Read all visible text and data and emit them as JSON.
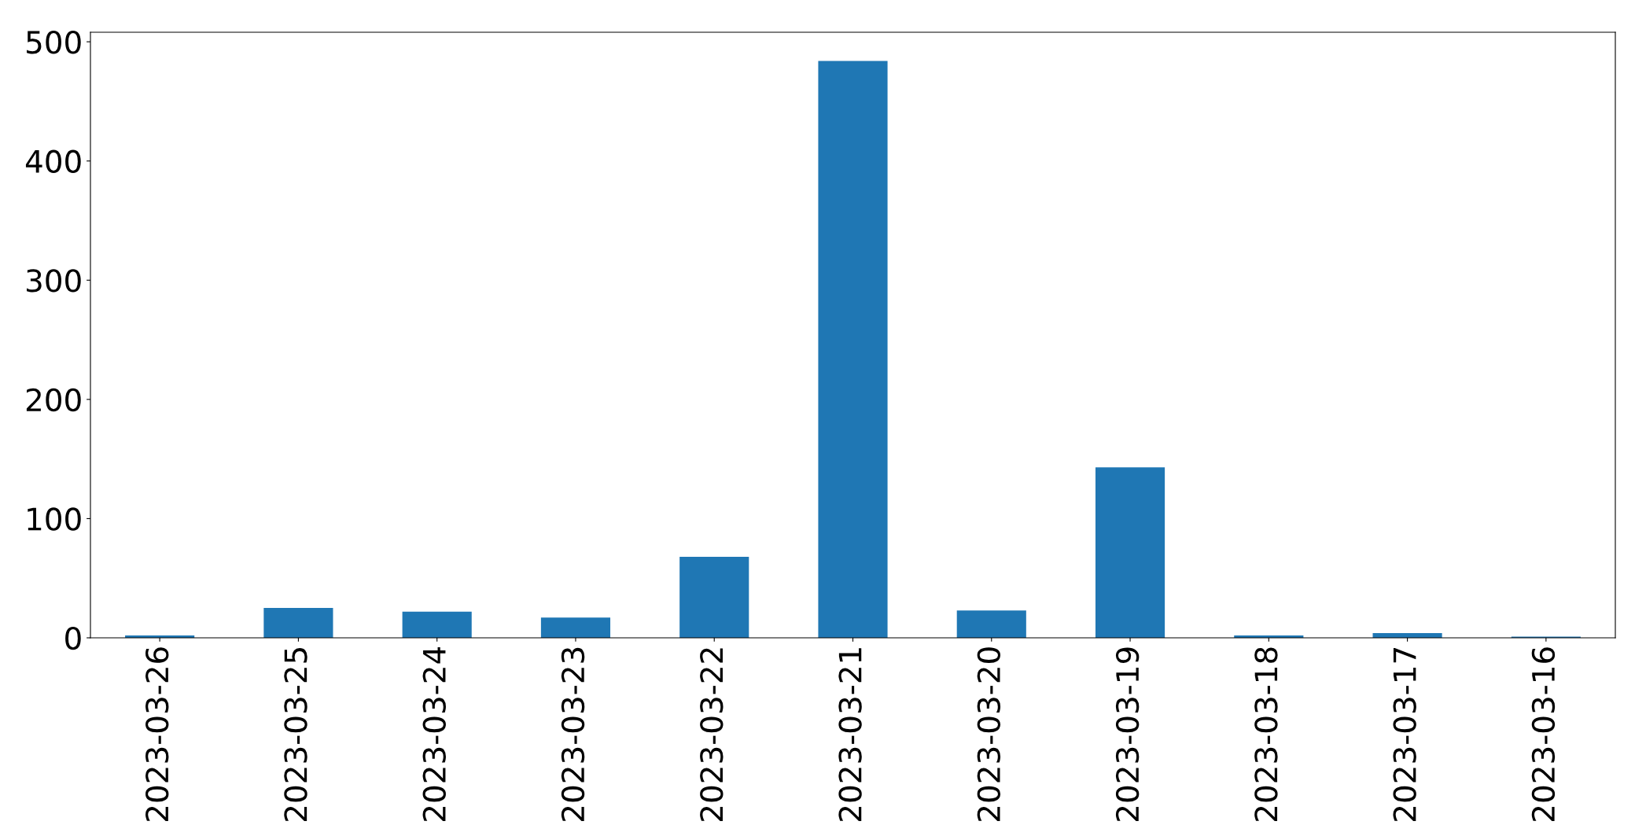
{
  "chart_data": {
    "type": "bar",
    "categories": [
      "2023-03-26",
      "2023-03-25",
      "2023-03-24",
      "2023-03-23",
      "2023-03-22",
      "2023-03-21",
      "2023-03-20",
      "2023-03-19",
      "2023-03-18",
      "2023-03-17",
      "2023-03-16"
    ],
    "values": [
      2,
      25,
      22,
      17,
      68,
      484,
      23,
      143,
      2,
      4,
      1
    ],
    "color": "#1f77b4",
    "ylim": [
      0,
      508
    ],
    "yticks": [
      0,
      100,
      200,
      300,
      400,
      500
    ],
    "grid": false,
    "legend": false
  }
}
